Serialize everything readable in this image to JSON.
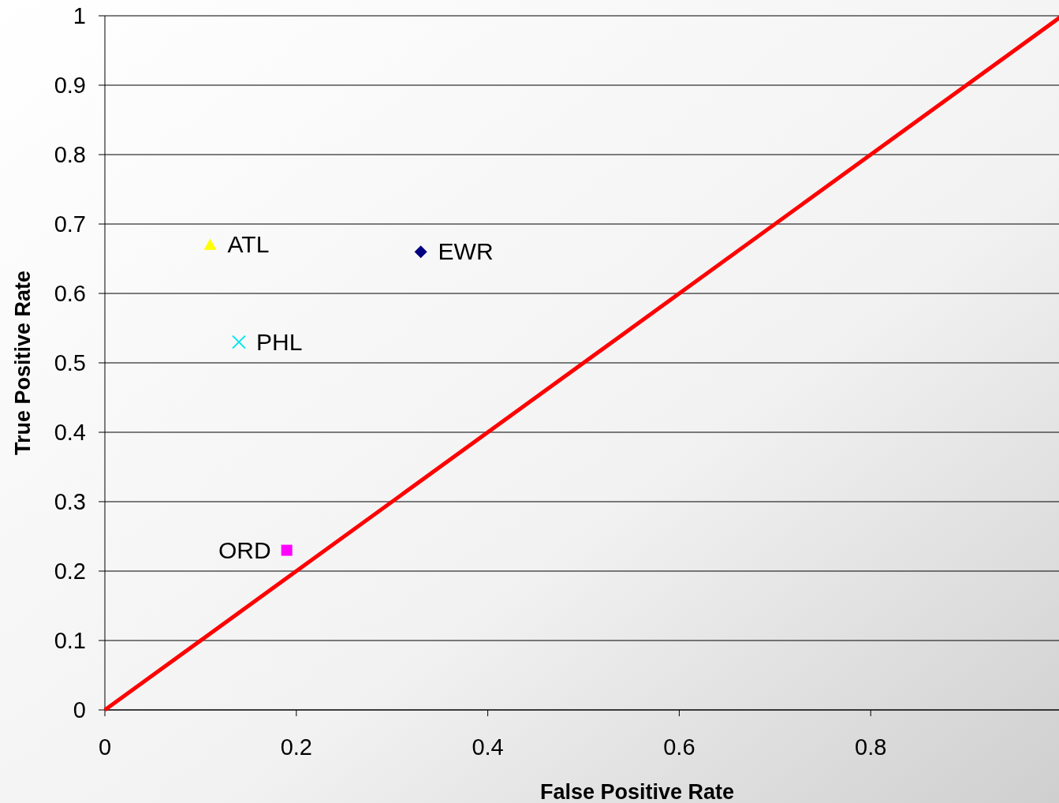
{
  "chart_data": {
    "type": "scatter",
    "xlabel": "False Positive Rate",
    "ylabel": "True Positive Rate",
    "xlim": [
      0,
      1
    ],
    "xticks": [
      0,
      0.2,
      0.4,
      0.6,
      0.8
    ],
    "ylim": [
      0,
      1
    ],
    "yticks": [
      0,
      0.1,
      0.2,
      0.3,
      0.4,
      0.5,
      0.6,
      0.7,
      0.8,
      0.9,
      1
    ],
    "grid": "y",
    "series": [
      {
        "name": "ATL",
        "color": "#ffff00",
        "marker": "triangle",
        "x": [
          0.11
        ],
        "values": [
          0.67
        ]
      },
      {
        "name": "EWR",
        "color": "#000080",
        "marker": "diamond",
        "x": [
          0.33
        ],
        "values": [
          0.66
        ]
      },
      {
        "name": "PHL",
        "color": "#00e5ee",
        "marker": "cross",
        "x": [
          0.14
        ],
        "values": [
          0.53
        ]
      },
      {
        "name": "ORD",
        "color": "#ff00ff",
        "marker": "square",
        "x": [
          0.19
        ],
        "values": [
          0.23
        ]
      },
      {
        "type": "line",
        "color": "#ff0000",
        "x": [
          0,
          1
        ],
        "values": [
          0,
          1
        ]
      }
    ]
  }
}
